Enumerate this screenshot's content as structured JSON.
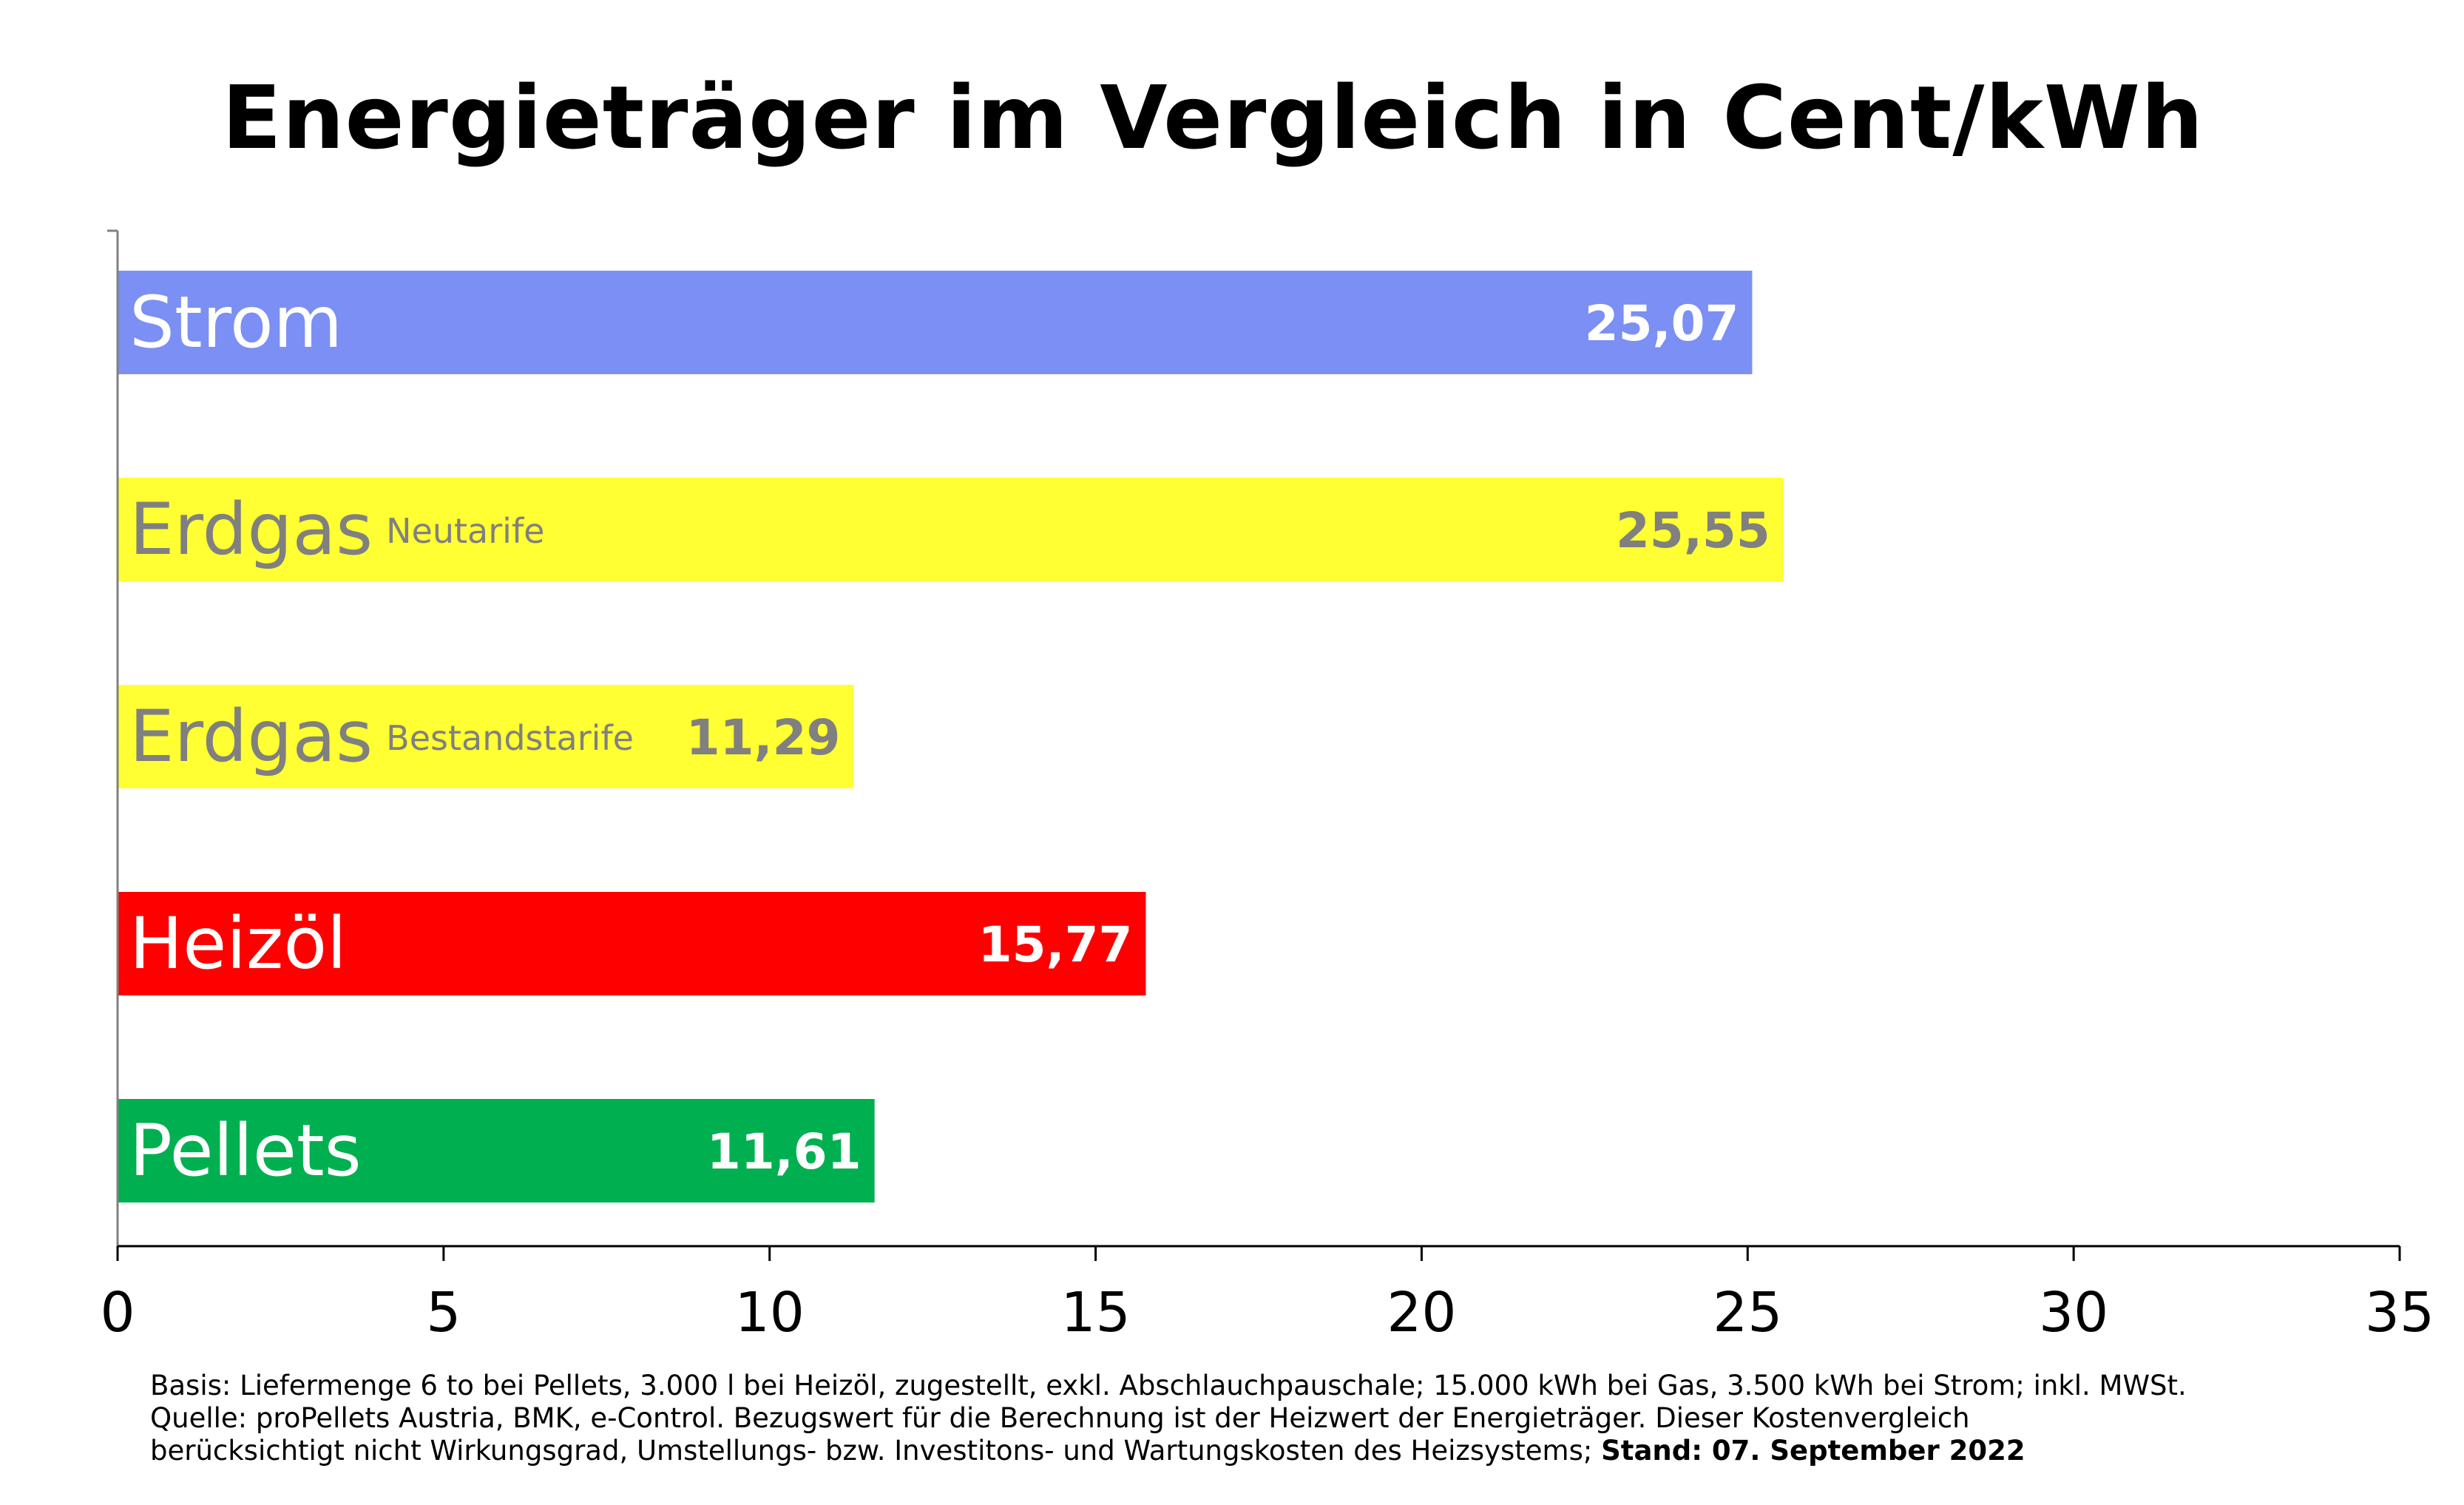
{
  "chart_data": {
    "type": "bar",
    "orientation": "horizontal",
    "title": "Energieträger im Vergleich in Cent/kWh",
    "categories": [
      {
        "label": "Strom",
        "sublabel": "",
        "value": 25.07,
        "value_label": "25,07",
        "color": "#7b8ff4",
        "label_color": "#ffffff",
        "value_color": "#ffffff"
      },
      {
        "label": "Erdgas",
        "sublabel": "Neutarife",
        "value": 25.55,
        "value_label": "25,55",
        "color": "#ffff33",
        "label_color": "#808080",
        "value_color": "#808080"
      },
      {
        "label": "Erdgas",
        "sublabel": "Bestandstarife",
        "value": 11.29,
        "value_label": "11,29",
        "color": "#ffff33",
        "label_color": "#808080",
        "value_color": "#808080"
      },
      {
        "label": "Heizöl",
        "sublabel": "",
        "value": 15.77,
        "value_label": "15,77",
        "color": "#ff0000",
        "label_color": "#ffffff",
        "value_color": "#ffffff"
      },
      {
        "label": "Pellets",
        "sublabel": "",
        "value": 11.61,
        "value_label": "11,61",
        "color": "#00b050",
        "label_color": "#ffffff",
        "value_color": "#ffffff"
      }
    ],
    "xlim": [
      0,
      35
    ],
    "xticks": [
      "0",
      "5",
      "10",
      "15",
      "20",
      "25",
      "30",
      "35"
    ],
    "xlabel": "",
    "ylabel": "",
    "grid": false,
    "legend": "none"
  },
  "footnote": {
    "line1": "Basis: Liefermenge 6 to bei Pellets, 3.000 l bei Heizöl, zugestellt, exkl. Abschlauchpauschale; 15.000 kWh bei Gas, 3.500 kWh bei Strom; inkl. MWSt.",
    "line2": "Quelle: proPellets Austria, BMK, e-Control. Bezugswert für die Berechnung ist der Heizwert der Energieträger. Dieser Kostenvergleich",
    "line3_regular": "berücksichtigt nicht Wirkungsgrad, Umstellungs- bzw. Investitons- und Wartungskosten des Heizsystems; ",
    "line3_bold": "Stand: 07. September 2022"
  }
}
